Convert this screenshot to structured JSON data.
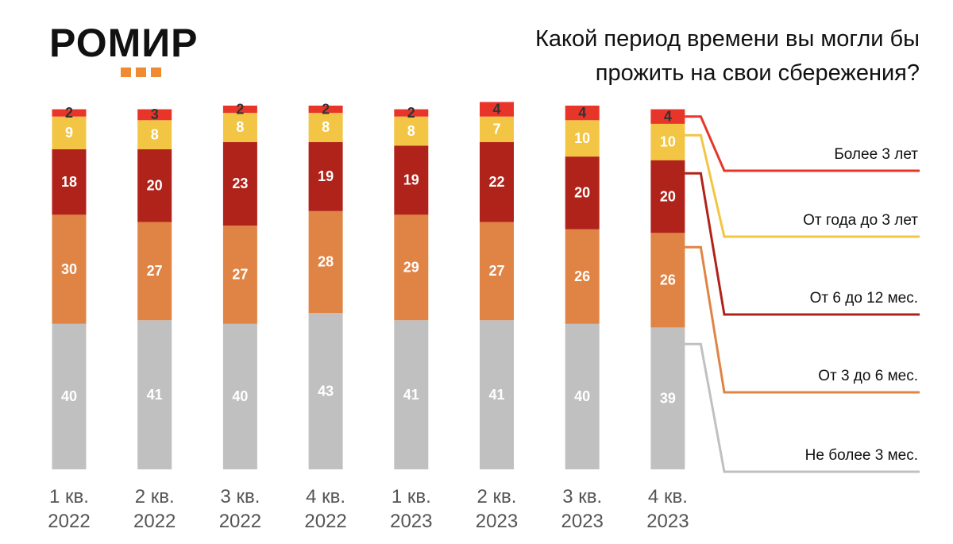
{
  "logo": "РОМИР",
  "chart_data": {
    "type": "stacked-bar",
    "title": "Какой период времени вы могли бы прожить на свои сбережения?",
    "categories": [
      "1 кв. 2022",
      "2 кв. 2022",
      "3 кв. 2022",
      "4 кв. 2022",
      "1 кв. 2023",
      "2 кв. 2023",
      "3 кв. 2023",
      "4 кв. 2023"
    ],
    "series": [
      {
        "name": "Не более 3 мес.",
        "color": "#c0c0c0",
        "values": [
          40,
          41,
          40,
          43,
          41,
          41,
          40,
          39
        ]
      },
      {
        "name": "От 3 до 6 мес.",
        "color": "#e08445",
        "values": [
          30,
          27,
          27,
          28,
          29,
          27,
          26,
          26
        ]
      },
      {
        "name": "От 6 до 12 мес.",
        "color": "#b0231a",
        "values": [
          18,
          20,
          23,
          19,
          19,
          22,
          20,
          20
        ]
      },
      {
        "name": "От года до 3 лет",
        "color": "#f3c544",
        "values": [
          9,
          8,
          8,
          8,
          8,
          7,
          10,
          10
        ]
      },
      {
        "name": "Более 3 лет",
        "color": "#e8352a",
        "values": [
          2,
          3,
          2,
          2,
          2,
          4,
          4,
          4
        ]
      }
    ]
  }
}
